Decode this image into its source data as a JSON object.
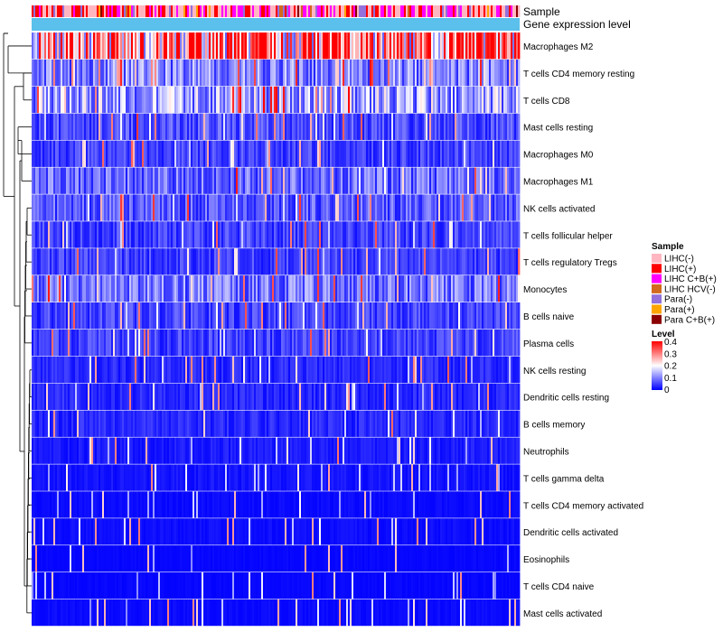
{
  "chart_data": {
    "type": "heatmap",
    "title": "",
    "column_annotations": [
      {
        "name": "Sample",
        "kind": "categorical"
      },
      {
        "name": "Gene expression level",
        "kind": "continuous"
      }
    ],
    "rows": [
      {
        "label": "Macrophages M2",
        "mean": 0.3
      },
      {
        "label": "T cells CD4 memory resting",
        "mean": 0.1
      },
      {
        "label": "T cells CD8",
        "mean": 0.13
      },
      {
        "label": "Mast cells resting",
        "mean": 0.06
      },
      {
        "label": "Macrophages M0",
        "mean": 0.05
      },
      {
        "label": "Macrophages M1",
        "mean": 0.08
      },
      {
        "label": "NK cells activated",
        "mean": 0.07
      },
      {
        "label": "T cells follicular helper",
        "mean": 0.05
      },
      {
        "label": "T cells regulatory  Tregs",
        "mean": 0.05
      },
      {
        "label": "Monocytes",
        "mean": 0.09
      },
      {
        "label": "B cells naive",
        "mean": 0.05
      },
      {
        "label": "Plasma cells",
        "mean": 0.05
      },
      {
        "label": "NK cells resting",
        "mean": 0.03
      },
      {
        "label": "Dendritic cells resting",
        "mean": 0.03
      },
      {
        "label": "B cells memory",
        "mean": 0.03
      },
      {
        "label": "Neutrophils",
        "mean": 0.02
      },
      {
        "label": "T cells gamma delta",
        "mean": 0.015
      },
      {
        "label": "T cells CD4 memory activated",
        "mean": 0.008
      },
      {
        "label": "Dendritic cells activated",
        "mean": 0.01
      },
      {
        "label": "Eosinophils",
        "mean": 0.005
      },
      {
        "label": "T cells CD4 naive",
        "mean": 0.005
      },
      {
        "label": "Mast cells activated",
        "mean": 0.008
      }
    ],
    "legend_sample": {
      "title": "Sample",
      "entries": [
        {
          "label": "LIHC(-)",
          "color": "#FFB6C1"
        },
        {
          "label": "LIHC(+)",
          "color": "#FF0000"
        },
        {
          "label": "LIHC C+B(+)",
          "color": "#FF00FF"
        },
        {
          "label": "LIHC HCV(-)",
          "color": "#D2691E"
        },
        {
          "label": "Para(-)",
          "color": "#9370DB"
        },
        {
          "label": "Para(+)",
          "color": "#FFA500"
        },
        {
          "label": "Para C+B(+)",
          "color": "#8B0000"
        }
      ]
    },
    "legend_level": {
      "title": "Level",
      "ticks": [
        "0.4",
        "0.3",
        "0.2",
        "0.1",
        "0"
      ],
      "range": [
        0,
        0.4
      ],
      "colors": [
        "#0000FF",
        "#FFFFFF",
        "#FF0000"
      ]
    },
    "expression_bar_color": "#5BC0EB",
    "sample_mix": [
      {
        "category": "LIHC(-)",
        "share": 0.42
      },
      {
        "category": "LIHC(+)",
        "share": 0.22
      },
      {
        "category": "LIHC C+B(+)",
        "share": 0.22
      },
      {
        "category": "LIHC HCV(-)",
        "share": 0.02
      },
      {
        "category": "Para(-)",
        "share": 0.08
      },
      {
        "category": "Para(+)",
        "share": 0.02
      },
      {
        "category": "Para C+B(+)",
        "share": 0.02
      }
    ]
  }
}
